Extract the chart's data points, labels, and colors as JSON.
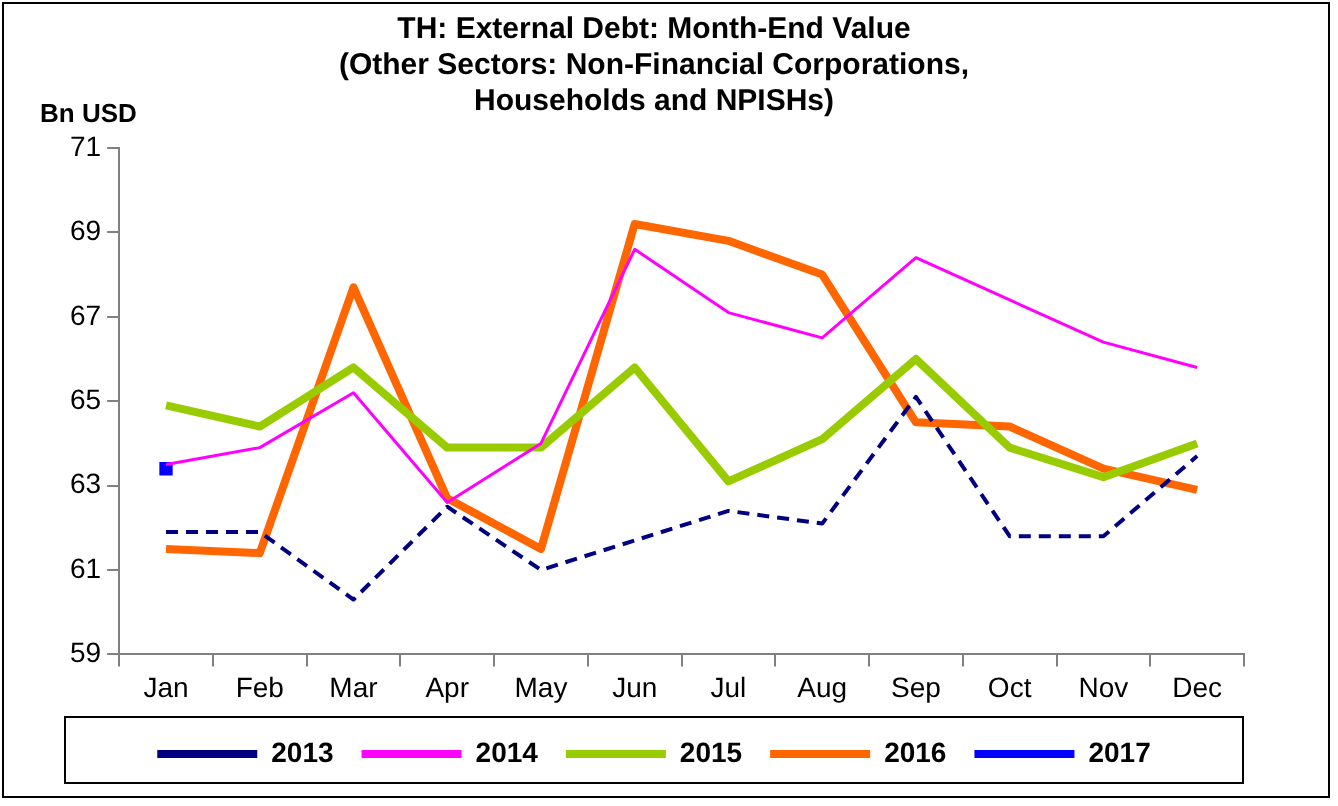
{
  "chart_data": {
    "type": "line",
    "title": [
      "TH: External Debt: Month-End Value",
      "(Other Sectors: Non-Financial Corporations,",
      "Households and NPISHs)"
    ],
    "ylabel": "Bn USD",
    "categories": [
      "Jan",
      "Feb",
      "Mar",
      "Apr",
      "May",
      "Jun",
      "Jul",
      "Aug",
      "Sep",
      "Oct",
      "Nov",
      "Dec"
    ],
    "ylim": [
      59,
      71
    ],
    "yticks": [
      59,
      61,
      63,
      65,
      67,
      69,
      71
    ],
    "grid": false,
    "legend": "bottom",
    "marker": "none",
    "series": [
      {
        "name": "2013",
        "color": "#000080",
        "line_style": "dashed",
        "values": [
          61.9,
          61.9,
          60.3,
          62.5,
          61.0,
          61.7,
          62.4,
          62.1,
          65.1,
          61.8,
          61.8,
          63.7
        ]
      },
      {
        "name": "2014",
        "color": "#ff00ff",
        "line_style": "solid",
        "values": [
          63.5,
          63.9,
          65.2,
          62.6,
          64.0,
          68.6,
          67.1,
          66.5,
          68.4,
          67.4,
          66.4,
          65.8
        ]
      },
      {
        "name": "2015",
        "color": "#99cc00",
        "line_style": "solid",
        "values": [
          64.9,
          64.4,
          65.8,
          63.9,
          63.9,
          65.8,
          63.1,
          64.1,
          66.0,
          63.9,
          63.2,
          64.0
        ]
      },
      {
        "name": "2016",
        "color": "#ff6600",
        "line_style": "solid",
        "values": [
          61.5,
          61.4,
          67.7,
          62.7,
          61.5,
          69.2,
          68.8,
          68.0,
          64.5,
          64.4,
          63.4,
          62.9
        ]
      },
      {
        "name": "2017",
        "color": "#0000ff",
        "line_style": "solid",
        "marker": "square",
        "values": [
          63.4,
          null,
          null,
          null,
          null,
          null,
          null,
          null,
          null,
          null,
          null,
          null
        ]
      }
    ]
  }
}
